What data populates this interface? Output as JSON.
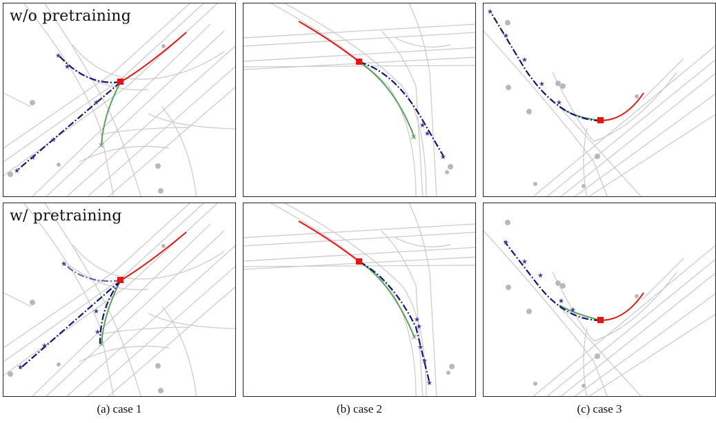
{
  "row_labels": [
    "w/o pretraining",
    "w/ pretraining"
  ],
  "captions": [
    "(a) case 1",
    "(b) case 2",
    "(c) case 3"
  ],
  "colors": {
    "map_lane": "#c8c8c8",
    "agent": "#b8b8b8",
    "history": "#e8140f",
    "current_position": "#e8140f",
    "prediction_dark": "#12127a",
    "prediction_light": "#5a5ab0",
    "ground_truth": "#5aa25a"
  }
}
